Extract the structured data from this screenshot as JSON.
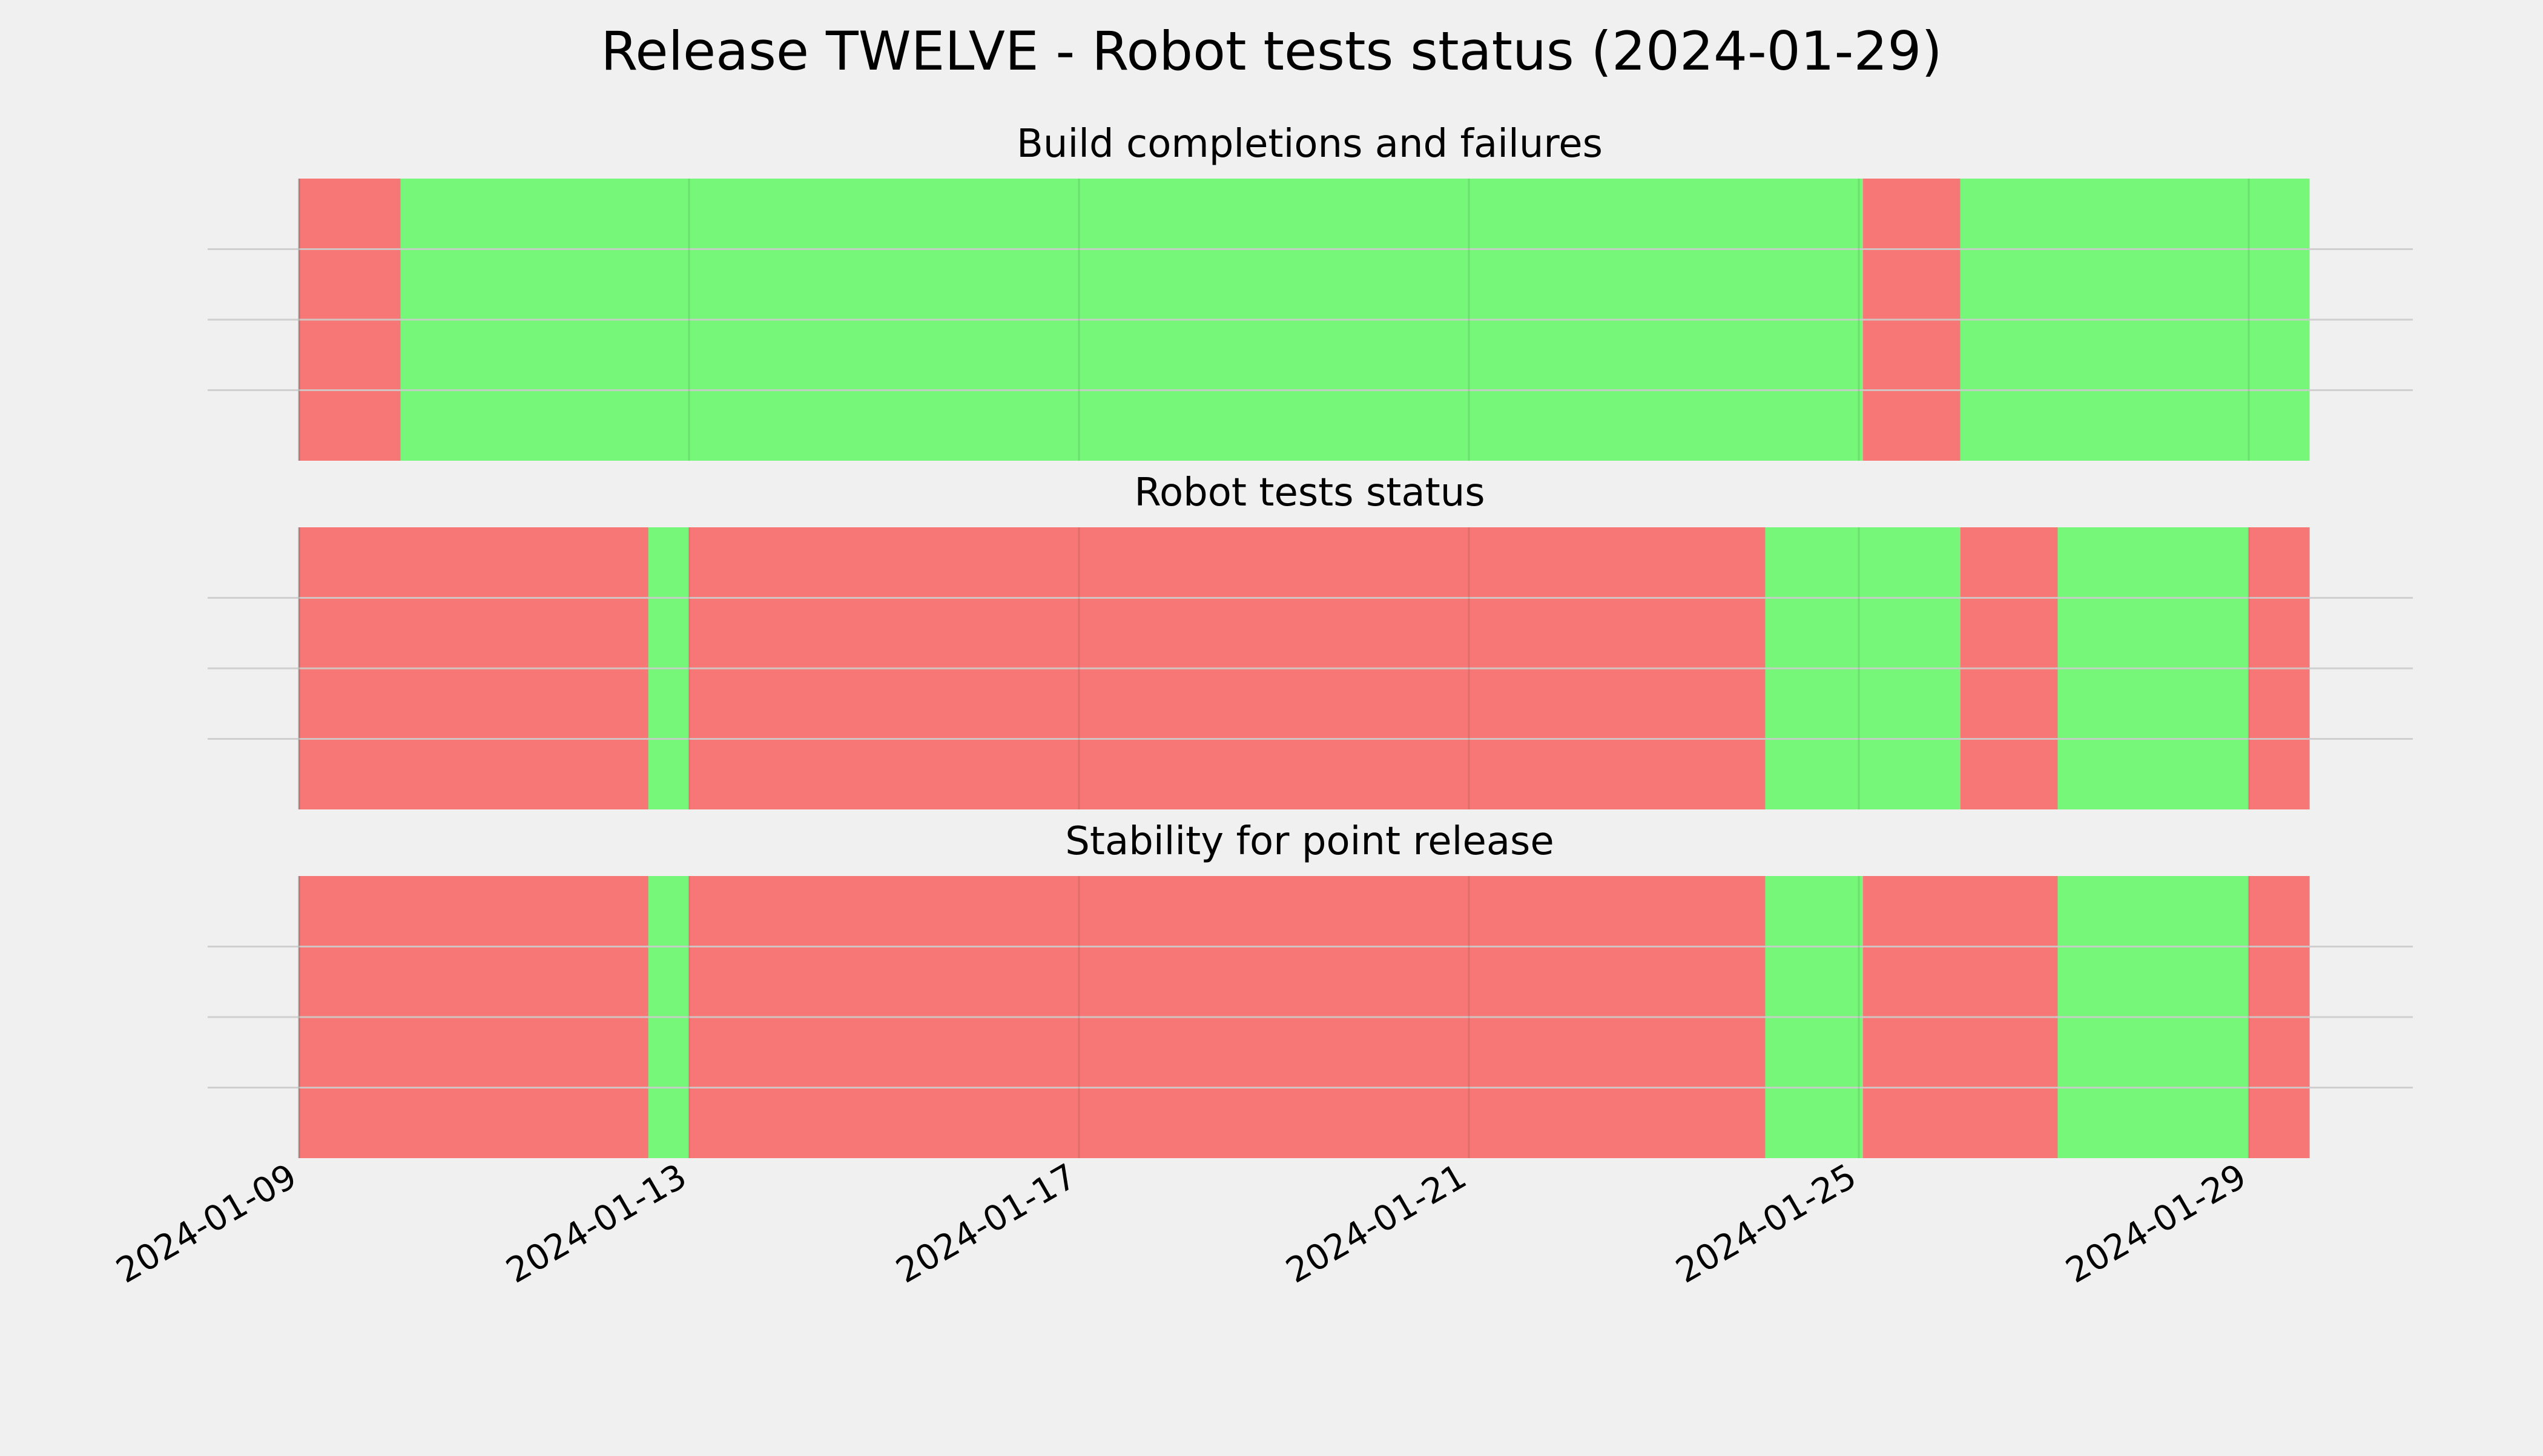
{
  "chart_data": {
    "type": "timeline",
    "title": "Release TWELVE - Robot tests status (2024-01-29)",
    "date_start": "2024-01-09",
    "xlim": [
      "2024-01-09",
      "2024-01-30 15:00"
    ],
    "x_ticks": [
      "2024-01-09",
      "2024-01-13",
      "2024-01-17",
      "2024-01-21",
      "2024-01-25",
      "2024-01-29"
    ],
    "grid": true,
    "colors": {
      "fail": "#f77776",
      "pass": "#76f77a",
      "background": "#f0f0f0",
      "grid": "#cbcbcb"
    },
    "panels": [
      {
        "title": "Build completions and failures",
        "segments": [
          {
            "start": "2024-01-09 00:00",
            "end": "2024-01-10 01:00",
            "status": "fail"
          },
          {
            "start": "2024-01-10 01:00",
            "end": "2024-01-25 01:00",
            "status": "pass"
          },
          {
            "start": "2024-01-25 01:00",
            "end": "2024-01-26 01:00",
            "status": "fail"
          },
          {
            "start": "2024-01-26 01:00",
            "end": "2024-01-29 15:00",
            "status": "pass"
          }
        ]
      },
      {
        "title": "Robot tests status",
        "segments": [
          {
            "start": "2024-01-09 00:00",
            "end": "2024-01-12 14:00",
            "status": "fail"
          },
          {
            "start": "2024-01-12 14:00",
            "end": "2024-01-13 00:00",
            "status": "pass"
          },
          {
            "start": "2024-01-13 00:00",
            "end": "2024-01-24 01:00",
            "status": "fail"
          },
          {
            "start": "2024-01-24 01:00",
            "end": "2024-01-26 01:00",
            "status": "pass"
          },
          {
            "start": "2024-01-26 01:00",
            "end": "2024-01-27 01:00",
            "status": "fail"
          },
          {
            "start": "2024-01-27 01:00",
            "end": "2024-01-29 00:00",
            "status": "pass"
          },
          {
            "start": "2024-01-29 00:00",
            "end": "2024-01-29 15:00",
            "status": "fail"
          }
        ]
      },
      {
        "title": "Stability for point release",
        "segments": [
          {
            "start": "2024-01-09 00:00",
            "end": "2024-01-12 14:00",
            "status": "fail"
          },
          {
            "start": "2024-01-12 14:00",
            "end": "2024-01-13 00:00",
            "status": "pass"
          },
          {
            "start": "2024-01-13 00:00",
            "end": "2024-01-24 01:00",
            "status": "fail"
          },
          {
            "start": "2024-01-24 01:00",
            "end": "2024-01-25 01:00",
            "status": "pass"
          },
          {
            "start": "2024-01-25 01:00",
            "end": "2024-01-27 01:00",
            "status": "fail"
          },
          {
            "start": "2024-01-27 01:00",
            "end": "2024-01-29 00:00",
            "status": "pass"
          },
          {
            "start": "2024-01-29 00:00",
            "end": "2024-01-29 15:00",
            "status": "fail"
          }
        ]
      }
    ]
  }
}
